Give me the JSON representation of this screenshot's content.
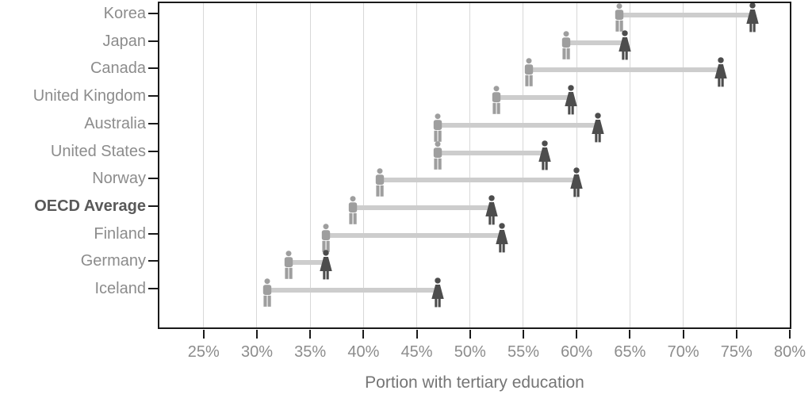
{
  "chart_data": {
    "type": "scatter",
    "variant": "dumbbell_pictogram",
    "title": "",
    "xlabel": "Portion with tertiary education",
    "ylabel": "",
    "categories": [
      "Korea",
      "Japan",
      "Canada",
      "United Kingdom",
      "Australia",
      "United States",
      "Norway",
      "OECD Average",
      "Finland",
      "Germany",
      "Iceland"
    ],
    "series": [
      {
        "name": "Men",
        "marker": "man-icon",
        "color": "#9e9e9e",
        "values": [
          64,
          59,
          55.5,
          52.5,
          47,
          47,
          41.5,
          39,
          36.5,
          33,
          31
        ]
      },
      {
        "name": "Women",
        "marker": "woman-icon",
        "color": "#4d4d4d",
        "values": [
          76.5,
          64.5,
          73.5,
          59.5,
          62,
          57,
          60,
          52,
          53,
          36.5,
          47
        ]
      }
    ],
    "x_tick_values": [
      25,
      30,
      35,
      40,
      45,
      50,
      55,
      60,
      65,
      70,
      75,
      80
    ],
    "x_tick_labels": [
      "25%",
      "30%",
      "35%",
      "40%",
      "45%",
      "50%",
      "55%",
      "60%",
      "65%",
      "70%",
      "75%",
      "80%"
    ],
    "xlim": [
      20.85,
      80
    ],
    "grid": "vertical",
    "legend": "none",
    "emphasized_category": "OECD Average",
    "connector_color": "#cdcdcd",
    "grid_color": "#d8d8d8",
    "axis_color": "#1a1a1a"
  }
}
